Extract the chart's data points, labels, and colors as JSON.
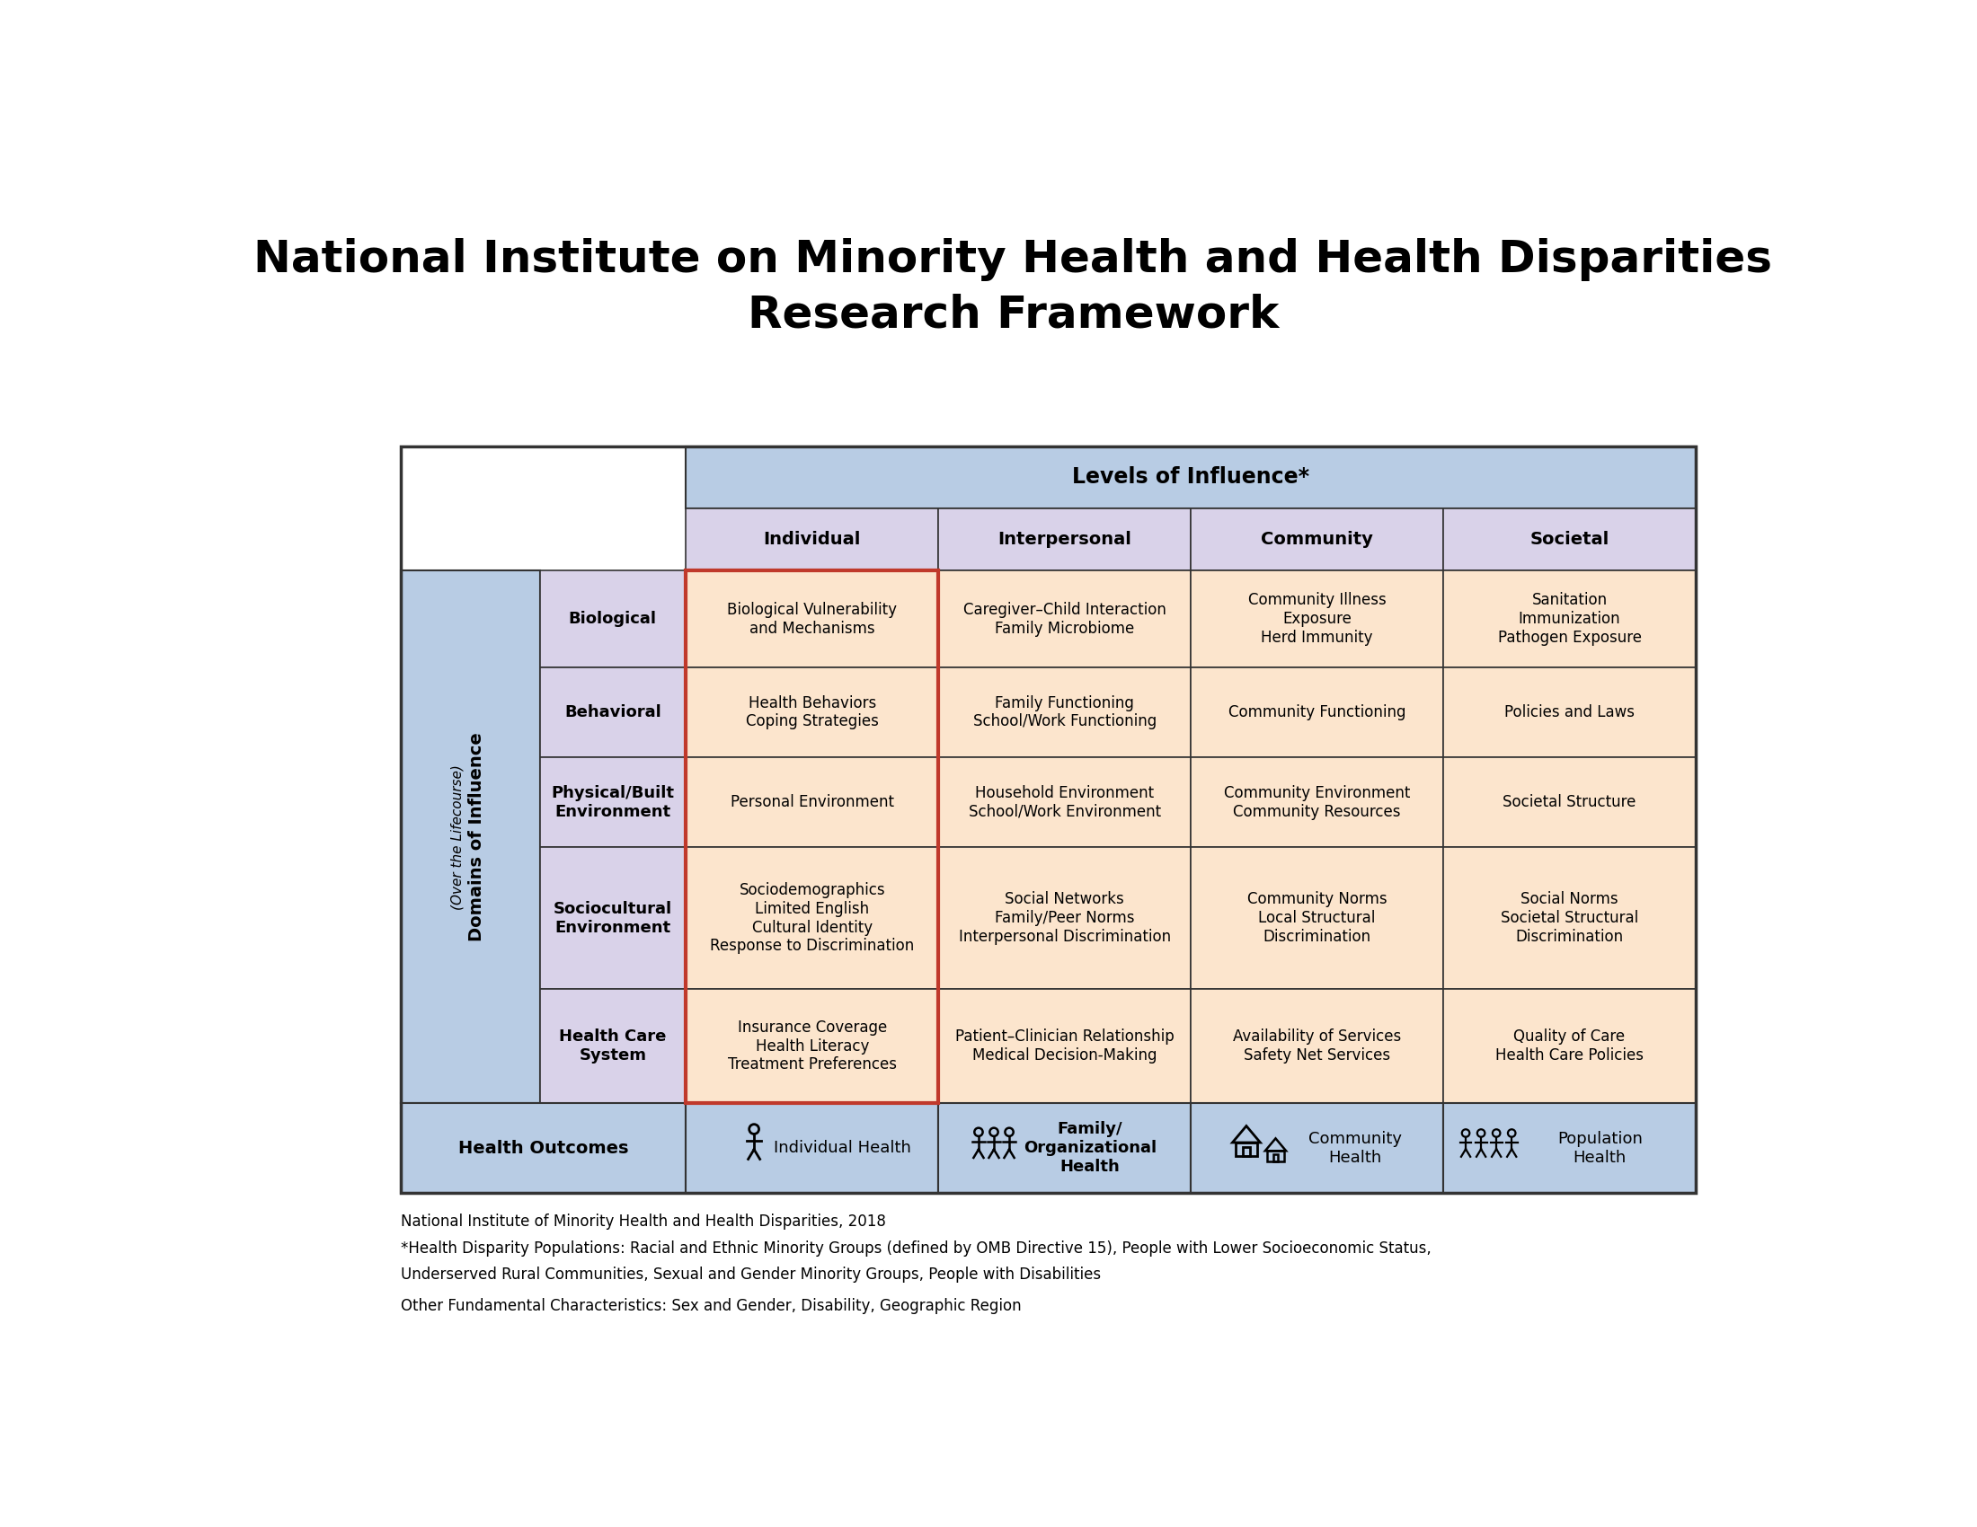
{
  "title_line1": "National Institute on Minority Health and Health Disparities",
  "title_line2": "Research Framework",
  "title_fontsize": 36,
  "levels_header": "Levels of Influence*",
  "col_headers": [
    "Individual",
    "Interpersonal",
    "Community",
    "Societal"
  ],
  "row_headers": [
    "Biological",
    "Behavioral",
    "Physical/Built\nEnvironment",
    "Sociocultural\nEnvironment",
    "Health Care\nSystem"
  ],
  "domain_label_line1": "Domains of Influence",
  "domain_label_line2": "(Over the Lifecourse)",
  "health_outcomes_label": "Health Outcomes",
  "health_outcomes_cells": [
    "Individual Health",
    "Family/\nOrganizational\nHealth",
    "Community\nHealth",
    "Population\nHealth"
  ],
  "ho_bold": [
    false,
    true,
    false,
    false
  ],
  "cell_data": [
    [
      "Biological Vulnerability\nand Mechanisms",
      "Caregiver–Child Interaction\nFamily Microbiome",
      "Community Illness\nExposure\nHerd Immunity",
      "Sanitation\nImmunization\nPathogen Exposure"
    ],
    [
      "Health Behaviors\nCoping Strategies",
      "Family Functioning\nSchool/Work Functioning",
      "Community Functioning",
      "Policies and Laws"
    ],
    [
      "Personal Environment",
      "Household Environment\nSchool/Work Environment",
      "Community Environment\nCommunity Resources",
      "Societal Structure"
    ],
    [
      "Sociodemographics\nLimited English\nCultural Identity\nResponse to Discrimination",
      "Social Networks\nFamily/Peer Norms\nInterpersonal Discrimination",
      "Community Norms\nLocal Structural\nDiscrimination",
      "Social Norms\nSocietal Structural\nDiscrimination"
    ],
    [
      "Insurance Coverage\nHealth Literacy\nTreatment Preferences",
      "Patient–Clinician Relationship\nMedical Decision-Making",
      "Availability of Services\nSafety Net Services",
      "Quality of Care\nHealth Care Policies"
    ]
  ],
  "color_levels_header": "#b8cce4",
  "color_col_headers": "#d9d2e9",
  "color_row_headers": "#d9d2e9",
  "color_domain_label": "#b8cce4",
  "color_health_outcomes": "#b8cce4",
  "color_data_cells": "#fce5cd",
  "color_border_red": "#c0392b",
  "color_border_outer": "#333333",
  "footnote1": "National Institute of Minority Health and Health Disparities, 2018",
  "footnote2": "*Health Disparity Populations: Racial and Ethnic Minority Groups (defined by OMB Directive 15), People with Lower Socioeconomic Status,",
  "footnote3": "Underserved Rural Communities, Sexual and Gender Minority Groups, People with Disabilities",
  "footnote4": "Other Fundamental Characteristics: Sex and Gender, Disability, Geographic Region",
  "footnote_fontsize": 12
}
